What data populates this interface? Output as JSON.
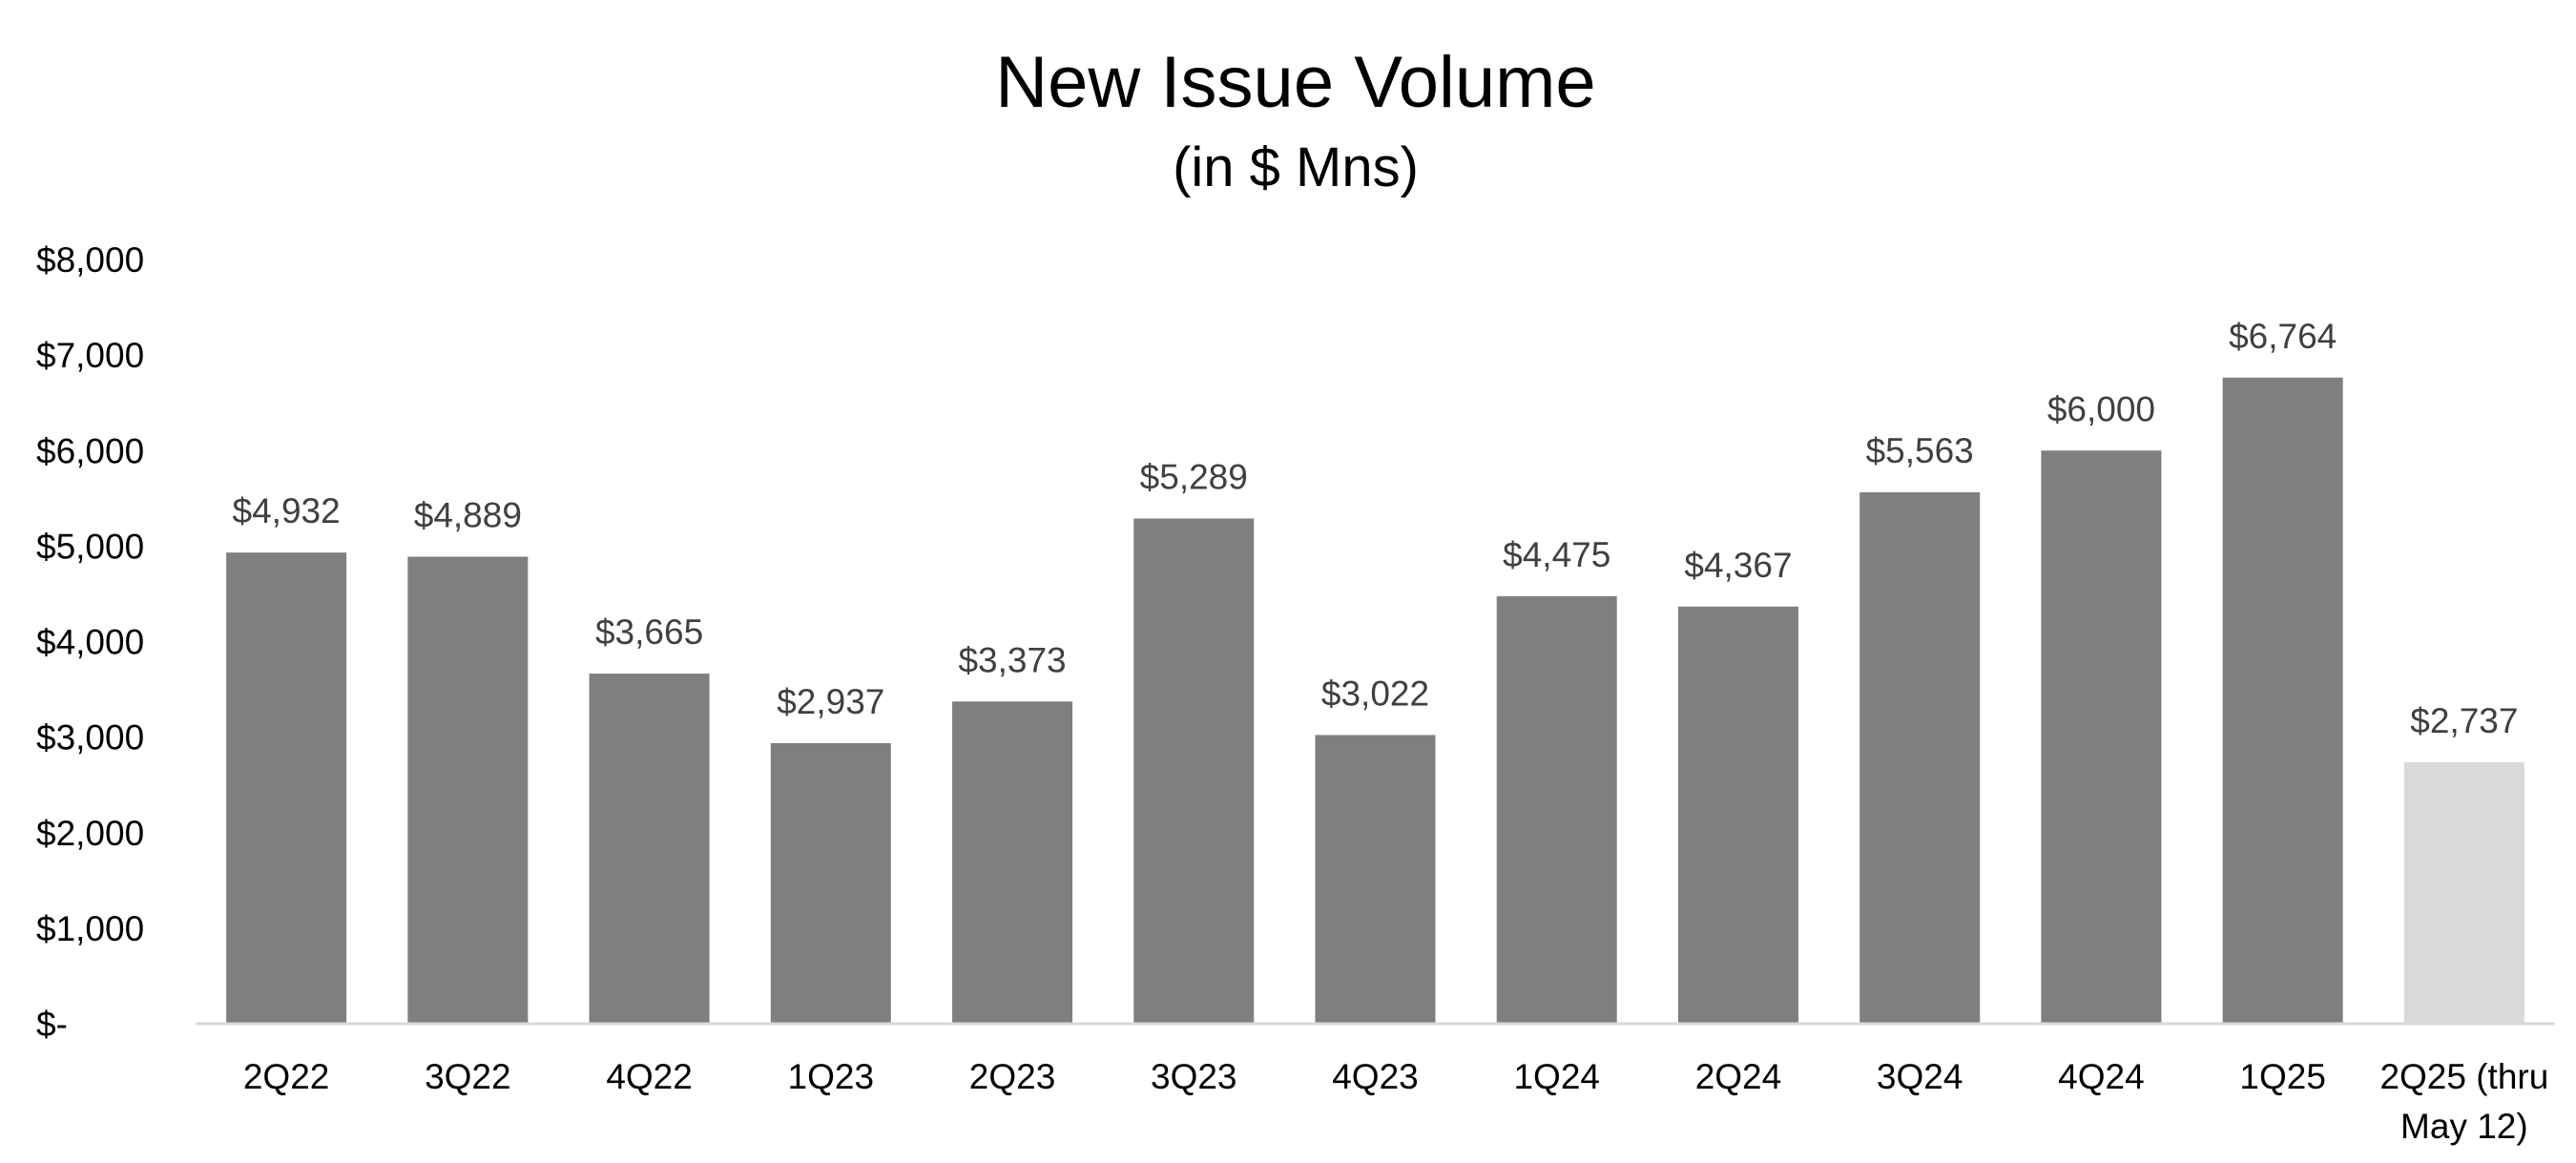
{
  "chart_data": {
    "type": "bar",
    "title": "New Issue Volume",
    "subtitle": "(in $ Mns)",
    "xlabel": "",
    "ylabel": "",
    "categories": [
      [
        "2Q22"
      ],
      [
        "3Q22"
      ],
      [
        "4Q22"
      ],
      [
        "1Q23"
      ],
      [
        "2Q23"
      ],
      [
        "3Q23"
      ],
      [
        "4Q23"
      ],
      [
        "1Q24"
      ],
      [
        "2Q24"
      ],
      [
        "3Q24"
      ],
      [
        "4Q24"
      ],
      [
        "1Q25"
      ],
      [
        "2Q25 (thru",
        "May 12)"
      ]
    ],
    "values": [
      4932,
      4889,
      3665,
      2937,
      3373,
      5289,
      3022,
      4475,
      4367,
      5563,
      6000,
      6764,
      2737
    ],
    "data_labels": [
      "$4,932",
      "$4,889",
      "$3,665",
      "$2,937",
      "$3,373",
      "$5,289",
      "$3,022",
      "$4,475",
      "$4,367",
      "$5,563",
      "$6,000",
      "$6,764",
      "$2,737"
    ],
    "bar_colors": [
      "#7f7f7f",
      "#7f7f7f",
      "#7f7f7f",
      "#7f7f7f",
      "#7f7f7f",
      "#7f7f7f",
      "#7f7f7f",
      "#7f7f7f",
      "#7f7f7f",
      "#7f7f7f",
      "#7f7f7f",
      "#7f7f7f",
      "#d9d9d9"
    ],
    "yticks": [
      0,
      1000,
      2000,
      3000,
      4000,
      5000,
      6000,
      7000,
      8000
    ],
    "ytick_labels": [
      "$-",
      "$1,000",
      "$2,000",
      "$3,000",
      "$4,000",
      "$5,000",
      "$6,000",
      "$7,000",
      "$8,000"
    ],
    "ylim": [
      0,
      8000
    ],
    "grid": false,
    "legend": "none"
  }
}
